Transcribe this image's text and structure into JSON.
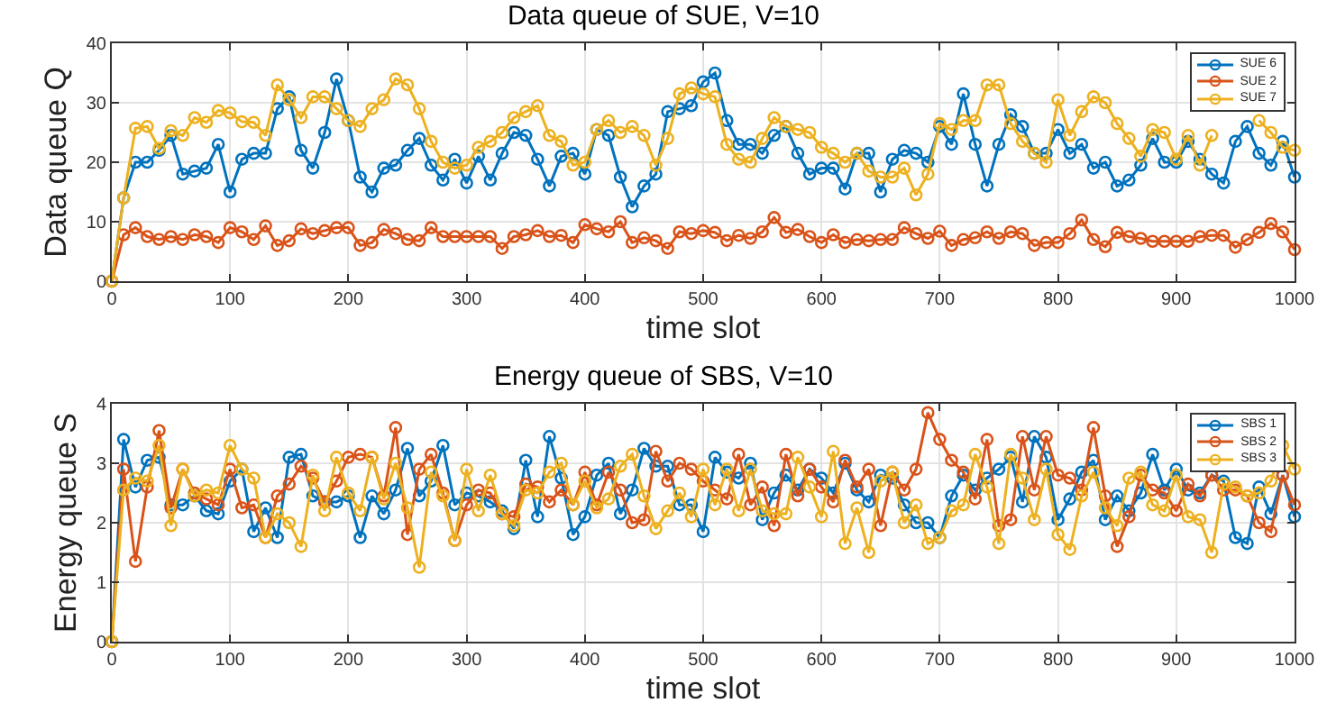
{
  "chart_data": [
    {
      "type": "line",
      "title": "Data queue of SUE, V=10",
      "xlabel": "time slot",
      "ylabel": "Data queue Q",
      "x": [
        0,
        10,
        20,
        30,
        40,
        50,
        60,
        70,
        80,
        90,
        100,
        110,
        120,
        130,
        140,
        150,
        160,
        170,
        180,
        190,
        200,
        210,
        220,
        230,
        240,
        250,
        260,
        270,
        280,
        290,
        300,
        310,
        320,
        330,
        340,
        350,
        360,
        370,
        380,
        390,
        400,
        410,
        420,
        430,
        440,
        450,
        460,
        470,
        480,
        490,
        500,
        510,
        520,
        530,
        540,
        550,
        560,
        570,
        580,
        590,
        600,
        610,
        620,
        630,
        640,
        650,
        660,
        670,
        680,
        690,
        700,
        710,
        720,
        730,
        740,
        750,
        760,
        770,
        780,
        790,
        800,
        810,
        820,
        830,
        840,
        850,
        860,
        870,
        880,
        890,
        900,
        910,
        920,
        930,
        940,
        950,
        960,
        970,
        980,
        990,
        1000
      ],
      "xlim": [
        0,
        1000
      ],
      "xticks": [
        0,
        100,
        200,
        300,
        400,
        500,
        600,
        700,
        800,
        900,
        1000
      ],
      "ylim": [
        0,
        40
      ],
      "yticks": [
        0,
        10,
        20,
        30,
        40
      ],
      "grid": true,
      "legend": "top right",
      "marker": "circle",
      "line_style": "solid",
      "series": [
        {
          "name": "SUE 6",
          "color": "#0072bd",
          "values": [
            0,
            14,
            20,
            20,
            22,
            24.5,
            18,
            18.5,
            19,
            23,
            15,
            20.5,
            21.5,
            21.5,
            29,
            31,
            22,
            19,
            25,
            34,
            27,
            17.5,
            15,
            19,
            19.5,
            22,
            24,
            19.5,
            17,
            20.5,
            16.5,
            21,
            17,
            21.5,
            25,
            24.5,
            20.5,
            16,
            21,
            21.5,
            18,
            25.5,
            24.5,
            17.5,
            12.5,
            16,
            18,
            28.5,
            29,
            29.5,
            33.5,
            35,
            27,
            23,
            23,
            21.5,
            24.5,
            26,
            21.5,
            18,
            19,
            19,
            15.5,
            21.5,
            21.5,
            15,
            20.5,
            22,
            21.5,
            20,
            26,
            23,
            31.5,
            23,
            16,
            23,
            28,
            26,
            21.5,
            21.5,
            25.5,
            21.5,
            23,
            19,
            20,
            16,
            17,
            19.5,
            24,
            20,
            20,
            23.5,
            20.5,
            18,
            16.5,
            23.5,
            26,
            21.5,
            19.5,
            23.5,
            17.5
          ]
        },
        {
          "name": "SUE 2",
          "color": "#d95319",
          "values": [
            0,
            7.8,
            9,
            7.5,
            7,
            7.5,
            7,
            7.8,
            7.5,
            6.5,
            9,
            8.3,
            7,
            9.3,
            6,
            6.8,
            8.8,
            8,
            8.5,
            9,
            9,
            6,
            6.5,
            8.7,
            8,
            7,
            6.8,
            9,
            7.5,
            7.5,
            7.5,
            7.5,
            7.5,
            5.5,
            7.5,
            7.8,
            8.5,
            7.5,
            7.7,
            6.5,
            9.5,
            8.8,
            8.3,
            10,
            6.5,
            7.3,
            6.8,
            5.5,
            8.3,
            8,
            8.5,
            8.2,
            6.8,
            7.7,
            7.2,
            8.3,
            10.7,
            8.2,
            8.7,
            7.5,
            6.5,
            7.8,
            6.5,
            7,
            6.8,
            7,
            7,
            9,
            8,
            7.2,
            8.4,
            6,
            7,
            7.3,
            8.3,
            7.2,
            8.3,
            8,
            6,
            6.5,
            6.5,
            8,
            10.3,
            7,
            5.8,
            8.2,
            7.5,
            7.2,
            6.7,
            6.7,
            6.7,
            6.7,
            7.5,
            7.7,
            7.7,
            5.7,
            7,
            8.2,
            9.7,
            8.3,
            5.3
          ]
        },
        {
          "name": "SUE 7",
          "color": "#edb120",
          "values": [
            0,
            14,
            25.7,
            26,
            22.3,
            25.3,
            24.5,
            27.5,
            26.7,
            28.7,
            28.3,
            26.8,
            26.7,
            24.5,
            33,
            30.5,
            27.5,
            31,
            31,
            29,
            27,
            26,
            29,
            30.5,
            34,
            33,
            29,
            23.5,
            20,
            19,
            19.5,
            22.5,
            23.5,
            25,
            27.5,
            28.5,
            29.5,
            24.5,
            23.5,
            19.5,
            20,
            25.5,
            27,
            25,
            26,
            24.5,
            19.5,
            24,
            31.5,
            32.5,
            31.5,
            31,
            23,
            20.5,
            20,
            24,
            27.5,
            26,
            25.5,
            25,
            22.5,
            21.5,
            20,
            21.5,
            18.5,
            17.5,
            17.5,
            19,
            14.5,
            18,
            26.5,
            25.5,
            27,
            27,
            33,
            33,
            26.5,
            23.5,
            21.5,
            20,
            30.5,
            24.5,
            28.5,
            31,
            30,
            26.5,
            24,
            21,
            25.5,
            25,
            20.5,
            24.5,
            19.5,
            24.5,
            null,
            null,
            null,
            27,
            25,
            22.5,
            22
          ]
        }
      ]
    },
    {
      "type": "line",
      "title": "Energy queue of SBS, V=10",
      "xlabel": "time slot",
      "ylabel": "Energy queue S",
      "x": [
        0,
        10,
        20,
        30,
        40,
        50,
        60,
        70,
        80,
        90,
        100,
        110,
        120,
        130,
        140,
        150,
        160,
        170,
        180,
        190,
        200,
        210,
        220,
        230,
        240,
        250,
        260,
        270,
        280,
        290,
        300,
        310,
        320,
        330,
        340,
        350,
        360,
        370,
        380,
        390,
        400,
        410,
        420,
        430,
        440,
        450,
        460,
        470,
        480,
        490,
        500,
        510,
        520,
        530,
        540,
        550,
        560,
        570,
        580,
        590,
        600,
        610,
        620,
        630,
        640,
        650,
        660,
        670,
        680,
        690,
        700,
        710,
        720,
        730,
        740,
        750,
        760,
        770,
        780,
        790,
        800,
        810,
        820,
        830,
        840,
        850,
        860,
        870,
        880,
        890,
        900,
        910,
        920,
        930,
        940,
        950,
        960,
        970,
        980,
        990,
        1000
      ],
      "xlim": [
        0,
        1000
      ],
      "xticks": [
        0,
        100,
        200,
        300,
        400,
        500,
        600,
        700,
        800,
        900,
        1000
      ],
      "ylim": [
        0,
        4
      ],
      "yticks": [
        0,
        1,
        2,
        3,
        4
      ],
      "grid": true,
      "legend": "top right",
      "marker": "circle",
      "line_style": "solid",
      "series": [
        {
          "name": "SBS 1",
          "color": "#0072bd",
          "values": [
            0,
            3.4,
            2.6,
            3.05,
            3.1,
            2.3,
            2.3,
            2.45,
            2.2,
            2.15,
            2.7,
            2.9,
            1.85,
            2.25,
            1.75,
            3.1,
            3.15,
            2.45,
            2.35,
            2.35,
            2.45,
            1.75,
            2.45,
            2.15,
            2.55,
            3.25,
            2.45,
            2.7,
            3.3,
            2.3,
            2.5,
            2.45,
            2.35,
            2.2,
            1.9,
            3.05,
            2.1,
            3.45,
            2.75,
            1.8,
            2.1,
            2.8,
            3.0,
            2.15,
            2.55,
            3.25,
            2.95,
            2.95,
            2.3,
            2.3,
            1.85,
            3.1,
            2.85,
            2.75,
            3.0,
            2.05,
            2.5,
            2.8,
            2.55,
            2.9,
            2.75,
            2.5,
            3.0,
            2.55,
            2.35,
            2.8,
            2.75,
            2.3,
            2.0,
            2.0,
            1.75,
            2.45,
            2.8,
            2.55,
            2.75,
            2.9,
            3.1,
            2.35,
            3.45,
            3.1,
            2.05,
            2.4,
            2.85,
            3.05,
            2.05,
            2.45,
            2.2,
            2.5,
            3.15,
            2.55,
            2.9,
            2.55,
            2.5,
            2.8,
            2.7,
            1.75,
            1.65,
            2.6,
            2.15,
            2.8,
            2.1
          ]
        },
        {
          "name": "SBS 2",
          "color": "#d95319",
          "values": [
            0,
            2.9,
            1.35,
            2.6,
            3.55,
            2.25,
            2.9,
            2.5,
            2.4,
            2.3,
            2.9,
            2.25,
            2.3,
            1.75,
            2.45,
            2.65,
            2.95,
            2.75,
            2.35,
            2.7,
            3.1,
            3.15,
            3.1,
            2.45,
            3.6,
            1.8,
            2.9,
            3.15,
            2.5,
            1.7,
            2.3,
            2.55,
            2.5,
            2.15,
            2.1,
            2.65,
            2.6,
            2.35,
            2.55,
            2.3,
            2.85,
            2.3,
            2.85,
            2.55,
            2.0,
            2.05,
            3.2,
            2.7,
            3.0,
            2.9,
            2.7,
            2.55,
            2.4,
            3.15,
            2.3,
            2.6,
            1.95,
            3.15,
            2.45,
            2.9,
            2.6,
            2.35,
            3.05,
            2.6,
            2.9,
            1.95,
            2.85,
            2.55,
            2.9,
            3.85,
            3.4,
            3.05,
            2.85,
            2.4,
            3.4,
            1.95,
            2.05,
            3.45,
            2.55,
            3.45,
            2.8,
            2.75,
            2.55,
            3.6,
            2.45,
            1.6,
            2.1,
            2.8,
            2.55,
            2.5,
            2.2,
            2.65,
            2.45,
            2.8,
            2.55,
            2.55,
            2.45,
            2.0,
            1.85,
            2.8,
            2.3
          ]
        },
        {
          "name": "SBS 3",
          "color": "#edb120",
          "values": [
            0,
            2.55,
            2.75,
            2.7,
            3.3,
            1.95,
            2.9,
            2.45,
            2.55,
            2.5,
            3.3,
            2.9,
            2.75,
            1.75,
            2.15,
            2.0,
            1.6,
            2.8,
            2.2,
            3.1,
            2.5,
            2.2,
            3.1,
            2.4,
            3.0,
            2.25,
            1.25,
            2.85,
            2.45,
            1.7,
            2.9,
            2.2,
            2.8,
            2.15,
            1.95,
            2.55,
            2.5,
            2.85,
            3.0,
            2.3,
            2.7,
            2.25,
            2.4,
            2.95,
            3.15,
            2.45,
            1.9,
            2.2,
            2.5,
            2.1,
            2.9,
            2.3,
            2.9,
            2.2,
            2.9,
            2.2,
            2.15,
            2.15,
            3.1,
            2.6,
            2.1,
            3.2,
            1.65,
            2.25,
            1.5,
            2.7,
            2.85,
            2.0,
            2.3,
            1.65,
            1.75,
            2.2,
            2.3,
            3.15,
            2.6,
            1.65,
            3.15,
            2.75,
            2.05,
            2.9,
            1.8,
            1.55,
            2.45,
            2.85,
            2.25,
            1.95,
            2.75,
            2.85,
            2.3,
            2.2,
            2.8,
            2.1,
            2.05,
            1.5,
            2.65,
            2.6,
            2.45,
            2.5,
            2.7,
            3.3,
            2.9
          ]
        }
      ]
    }
  ]
}
